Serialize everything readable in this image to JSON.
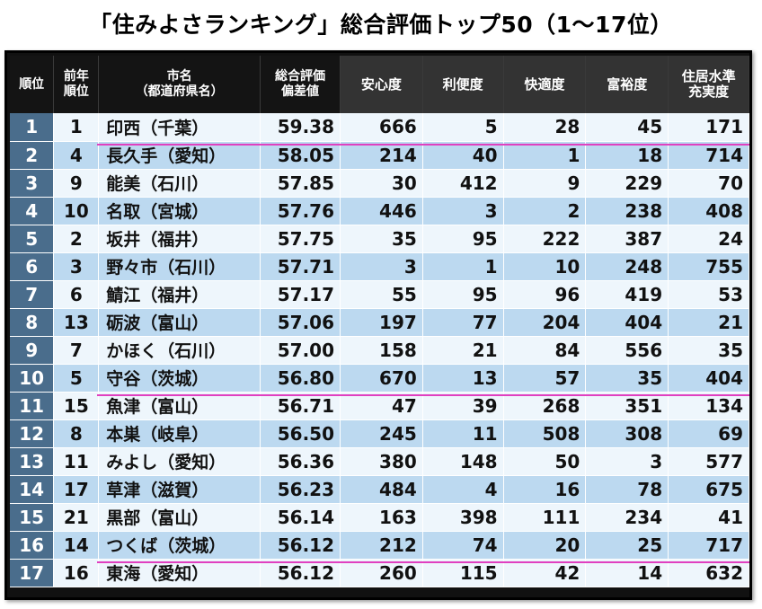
{
  "title": "「住みよさランキング」総合評価トップ50（1～17位）",
  "headers": {
    "rank": "順位",
    "prev_rank": [
      "前年",
      "順位"
    ],
    "city": [
      "市名",
      "（都道府県名）"
    ],
    "score": [
      "総合評価",
      "偏差値"
    ],
    "safety": "安心度",
    "convenience": "利便度",
    "comfort": "快適度",
    "wealth": "富裕度",
    "housing": [
      "住居水準",
      "充実度"
    ]
  },
  "rows": [
    {
      "rank": "1",
      "prev": "1",
      "city": "印西（千葉）",
      "score": "59.38",
      "safety": "666",
      "convenience": "5",
      "comfort": "28",
      "wealth": "45",
      "housing": "171"
    },
    {
      "rank": "2",
      "prev": "4",
      "city": "長久手（愛知）",
      "score": "58.05",
      "safety": "214",
      "convenience": "40",
      "comfort": "1",
      "wealth": "18",
      "housing": "714"
    },
    {
      "rank": "3",
      "prev": "9",
      "city": "能美（石川）",
      "score": "57.85",
      "safety": "30",
      "convenience": "412",
      "comfort": "9",
      "wealth": "229",
      "housing": "70"
    },
    {
      "rank": "4",
      "prev": "10",
      "city": "名取（宮城）",
      "score": "57.76",
      "safety": "446",
      "convenience": "3",
      "comfort": "2",
      "wealth": "238",
      "housing": "408"
    },
    {
      "rank": "5",
      "prev": "2",
      "city": "坂井（福井）",
      "score": "57.75",
      "safety": "35",
      "convenience": "95",
      "comfort": "222",
      "wealth": "387",
      "housing": "24"
    },
    {
      "rank": "6",
      "prev": "3",
      "city": "野々市（石川）",
      "score": "57.71",
      "safety": "3",
      "convenience": "1",
      "comfort": "10",
      "wealth": "248",
      "housing": "755"
    },
    {
      "rank": "7",
      "prev": "6",
      "city": "鯖江（福井）",
      "score": "57.17",
      "safety": "55",
      "convenience": "95",
      "comfort": "96",
      "wealth": "419",
      "housing": "53"
    },
    {
      "rank": "8",
      "prev": "13",
      "city": "砺波（富山）",
      "score": "57.06",
      "safety": "197",
      "convenience": "77",
      "comfort": "204",
      "wealth": "404",
      "housing": "21"
    },
    {
      "rank": "9",
      "prev": "7",
      "city": "かほく（石川）",
      "score": "57.00",
      "safety": "158",
      "convenience": "21",
      "comfort": "84",
      "wealth": "556",
      "housing": "35"
    },
    {
      "rank": "10",
      "prev": "5",
      "city": "守谷（茨城）",
      "score": "56.80",
      "safety": "670",
      "convenience": "13",
      "comfort": "57",
      "wealth": "35",
      "housing": "404"
    },
    {
      "rank": "11",
      "prev": "15",
      "city": "魚津（富山）",
      "score": "56.71",
      "safety": "47",
      "convenience": "39",
      "comfort": "268",
      "wealth": "351",
      "housing": "134"
    },
    {
      "rank": "12",
      "prev": "8",
      "city": "本巣（岐阜）",
      "score": "56.50",
      "safety": "245",
      "convenience": "11",
      "comfort": "508",
      "wealth": "308",
      "housing": "69"
    },
    {
      "rank": "13",
      "prev": "11",
      "city": "みよし（愛知）",
      "score": "56.36",
      "safety": "380",
      "convenience": "148",
      "comfort": "50",
      "wealth": "3",
      "housing": "577"
    },
    {
      "rank": "14",
      "prev": "17",
      "city": "草津（滋賀）",
      "score": "56.23",
      "safety": "484",
      "convenience": "4",
      "comfort": "16",
      "wealth": "78",
      "housing": "675"
    },
    {
      "rank": "15",
      "prev": "21",
      "city": "黒部（富山）",
      "score": "56.14",
      "safety": "163",
      "convenience": "398",
      "comfort": "111",
      "wealth": "234",
      "housing": "41"
    },
    {
      "rank": "16",
      "prev": "14",
      "city": "つくば（茨城）",
      "score": "56.12",
      "safety": "212",
      "convenience": "74",
      "comfort": "20",
      "wealth": "25",
      "housing": "717"
    },
    {
      "rank": "17",
      "prev": "16",
      "city": "東海（愛知）",
      "score": "56.12",
      "safety": "260",
      "convenience": "115",
      "comfort": "42",
      "wealth": "14",
      "housing": "632"
    }
  ],
  "colors": {
    "header_bg": "#141414",
    "rank_cell": "#4a6d8c",
    "row_light": "#eef6fc",
    "row_dark": "#bcd9f0",
    "highlight_line": "#e040c0"
  }
}
